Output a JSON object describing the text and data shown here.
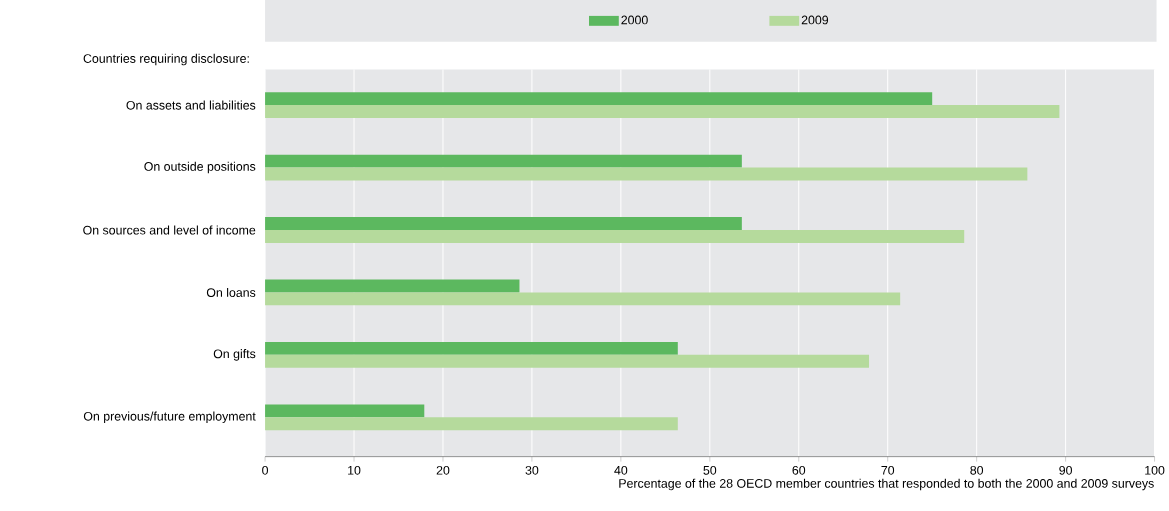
{
  "chart_data": {
    "type": "bar",
    "orientation": "horizontal",
    "categories": [
      "On assets and liabilities",
      "On outside positions",
      "On sources and level of income",
      "On loans",
      "On gifts",
      "On previous/future employment"
    ],
    "series": [
      {
        "name": "2000",
        "color": "#5cb85f",
        "values": [
          75.0,
          53.6,
          53.6,
          28.6,
          46.4,
          17.9
        ]
      },
      {
        "name": "2009",
        "color": "#b5da9c",
        "values": [
          89.3,
          85.7,
          78.6,
          71.4,
          67.9,
          46.4
        ]
      }
    ],
    "xlabel": "Percentage of the 28 OECD member countries that responded  to both the 2000 and 2009 surveys",
    "annotations": [
      "Countries requiring disclosure:"
    ],
    "xlim": [
      0,
      100
    ],
    "xticks": [
      0,
      10,
      20,
      30,
      40,
      50,
      60,
      70,
      80,
      90,
      100
    ],
    "grid": "x",
    "legend": "top"
  }
}
